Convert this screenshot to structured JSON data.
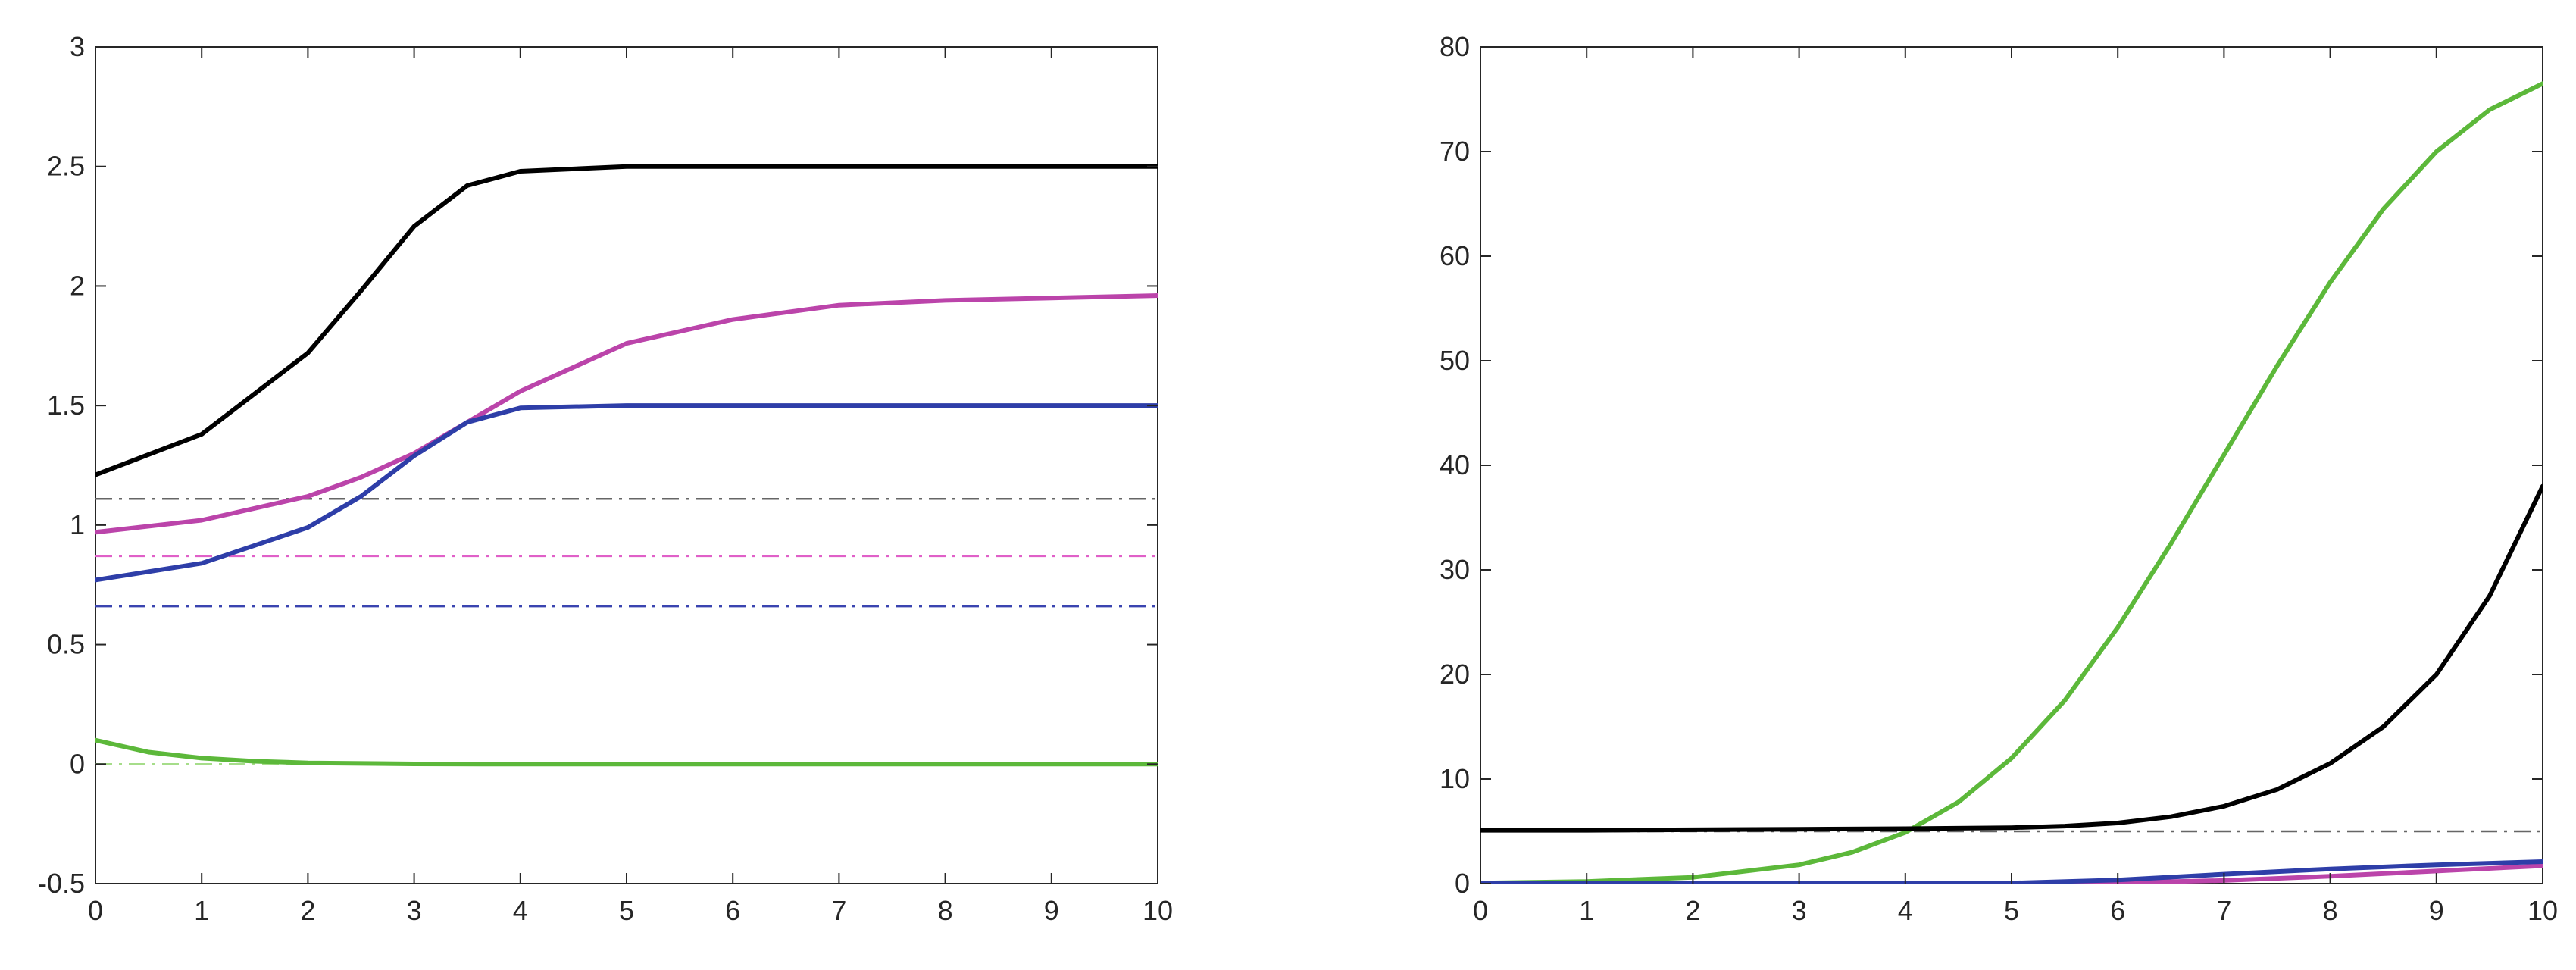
{
  "chart_data": [
    {
      "type": "line",
      "title": "",
      "xlabel": "",
      "ylabel": "",
      "xlim": [
        0,
        10
      ],
      "ylim": [
        -0.5,
        3
      ],
      "xticks": [
        0,
        1,
        2,
        3,
        4,
        5,
        6,
        7,
        8,
        9,
        10
      ],
      "yticks": [
        -0.5,
        0,
        0.5,
        1,
        1.5,
        2,
        2.5,
        3
      ],
      "xtick_labels": [
        "0",
        "1",
        "2",
        "3",
        "4",
        "5",
        "6",
        "7",
        "8",
        "9",
        "10"
      ],
      "ytick_labels": [
        "-0.5",
        "0",
        "0.5",
        "1",
        "1.5",
        "2",
        "2.5",
        "3"
      ],
      "grid": false,
      "legend": "none",
      "series": [
        {
          "color": "#000000",
          "style": "solid",
          "width": 6,
          "x": [
            0,
            1,
            2,
            2.5,
            3,
            3.5,
            4,
            5,
            6,
            7,
            8,
            9,
            10
          ],
          "y": [
            1.21,
            1.38,
            1.72,
            1.98,
            2.25,
            2.42,
            2.48,
            2.5,
            2.5,
            2.5,
            2.5,
            2.5,
            2.5
          ]
        },
        {
          "color": "#bb44aa",
          "style": "solid",
          "width": 6,
          "x": [
            0,
            1,
            2,
            2.5,
            3,
            3.5,
            4,
            5,
            6,
            7,
            8,
            9,
            10
          ],
          "y": [
            0.97,
            1.02,
            1.12,
            1.2,
            1.3,
            1.43,
            1.56,
            1.76,
            1.86,
            1.92,
            1.94,
            1.95,
            1.96
          ]
        },
        {
          "color": "#2e3ea8",
          "style": "solid",
          "width": 6,
          "x": [
            0,
            1,
            2,
            2.5,
            3,
            3.5,
            4,
            5,
            6,
            7,
            8,
            9,
            10
          ],
          "y": [
            0.77,
            0.84,
            0.99,
            1.12,
            1.29,
            1.43,
            1.49,
            1.5,
            1.5,
            1.5,
            1.5,
            1.5,
            1.5
          ]
        },
        {
          "color": "#5cb83a",
          "style": "solid",
          "width": 6,
          "x": [
            0,
            0.5,
            1,
            1.5,
            2,
            3,
            4,
            5,
            6,
            7,
            8,
            9,
            10
          ],
          "y": [
            0.1,
            0.05,
            0.025,
            0.012,
            0.005,
            0.001,
            0,
            0,
            0,
            0,
            0,
            0,
            0
          ]
        },
        {
          "color": "#666666",
          "style": "dashdot",
          "width": 2.5,
          "x": [
            0,
            10
          ],
          "y": [
            1.11,
            1.11
          ]
        },
        {
          "color": "#e060c8",
          "style": "dashdot",
          "width": 2.5,
          "x": [
            0,
            10
          ],
          "y": [
            0.87,
            0.87
          ]
        },
        {
          "color": "#3a44b0",
          "style": "dashdot",
          "width": 2.5,
          "x": [
            0,
            10
          ],
          "y": [
            0.66,
            0.66
          ]
        },
        {
          "color": "#a6dd8a",
          "style": "dashdot",
          "width": 2.5,
          "x": [
            0,
            10
          ],
          "y": [
            0,
            0
          ]
        }
      ]
    },
    {
      "type": "line",
      "title": "",
      "xlabel": "",
      "ylabel": "",
      "xlim": [
        0,
        10
      ],
      "ylim": [
        0,
        80
      ],
      "xticks": [
        0,
        1,
        2,
        3,
        4,
        5,
        6,
        7,
        8,
        9,
        10
      ],
      "yticks": [
        0,
        10,
        20,
        30,
        40,
        50,
        60,
        70,
        80
      ],
      "xtick_labels": [
        "0",
        "1",
        "2",
        "3",
        "4",
        "5",
        "6",
        "7",
        "8",
        "9",
        "10"
      ],
      "ytick_labels": [
        "0",
        "10",
        "20",
        "30",
        "40",
        "50",
        "60",
        "70",
        "80"
      ],
      "grid": false,
      "legend": "none",
      "series": [
        {
          "color": "#5cb83a",
          "style": "solid",
          "width": 6,
          "x": [
            0,
            1,
            2,
            3,
            3.5,
            4,
            4.5,
            5,
            5.5,
            6,
            6.5,
            7,
            7.5,
            8,
            8.5,
            9,
            9.5,
            10
          ],
          "y": [
            0.05,
            0.2,
            0.6,
            1.8,
            3,
            4.9,
            7.8,
            12,
            17.5,
            24.5,
            32.5,
            41,
            49.5,
            57.5,
            64.5,
            70,
            74,
            76.5
          ]
        },
        {
          "color": "#000000",
          "style": "solid",
          "width": 6,
          "x": [
            0,
            1,
            2,
            3,
            4,
            5,
            5.5,
            6,
            6.5,
            7,
            7.5,
            8,
            8.5,
            9,
            9.5,
            10
          ],
          "y": [
            5.1,
            5.1,
            5.15,
            5.2,
            5.25,
            5.35,
            5.5,
            5.8,
            6.4,
            7.4,
            9,
            11.5,
            15,
            20,
            27.5,
            38
          ]
        },
        {
          "color": "#bb44aa",
          "style": "solid",
          "width": 6,
          "x": [
            0,
            5,
            6,
            7,
            8,
            9,
            10
          ],
          "y": [
            0,
            0.02,
            0.08,
            0.3,
            0.7,
            1.2,
            1.7
          ]
        },
        {
          "color": "#2e3ea8",
          "style": "solid",
          "width": 6,
          "x": [
            0,
            5,
            6,
            7,
            8,
            9,
            10
          ],
          "y": [
            0,
            0.05,
            0.35,
            0.9,
            1.4,
            1.8,
            2.1
          ]
        },
        {
          "color": "#666666",
          "style": "dashdot",
          "width": 2.5,
          "x": [
            0,
            10
          ],
          "y": [
            5.0,
            5.0
          ]
        }
      ]
    }
  ]
}
